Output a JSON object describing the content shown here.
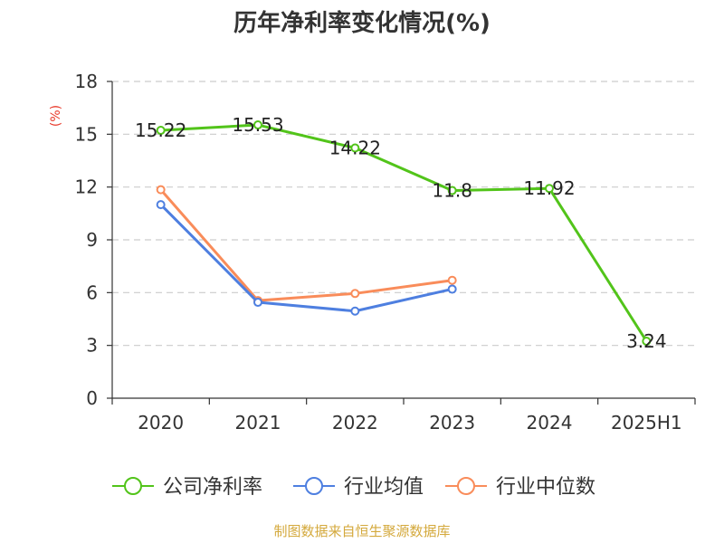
{
  "chart_data": {
    "type": "line",
    "title": "历年净利率变化情况(%)",
    "ylabel": "(%)",
    "categories": [
      "2020",
      "2021",
      "2022",
      "2023",
      "2024",
      "2025H1"
    ],
    "ylim": [
      0,
      18
    ],
    "yticks": [
      0,
      3,
      6,
      9,
      12,
      15,
      18
    ],
    "grid": true,
    "legend_position": "bottom",
    "series": [
      {
        "name": "公司净利率",
        "color": "#52c41a",
        "values": [
          15.22,
          15.53,
          14.22,
          11.8,
          11.92,
          3.24
        ],
        "labels": [
          "15.22",
          "15.53",
          "14.22",
          "11.8",
          "11.92",
          "3.24"
        ]
      },
      {
        "name": "行业均值",
        "color": "#4e7fe0",
        "values": [
          11.0,
          5.45,
          4.95,
          6.2,
          null,
          null
        ]
      },
      {
        "name": "行业中位数",
        "color": "#f98c5a",
        "values": [
          11.85,
          5.55,
          5.95,
          6.7,
          null,
          null
        ]
      }
    ]
  },
  "colors": {
    "ylabel": "#e83a2b",
    "source": "#d4a93c",
    "axis": "#333333",
    "grid": "#cccccc"
  },
  "source_text": "制图数据来自恒生聚源数据库"
}
